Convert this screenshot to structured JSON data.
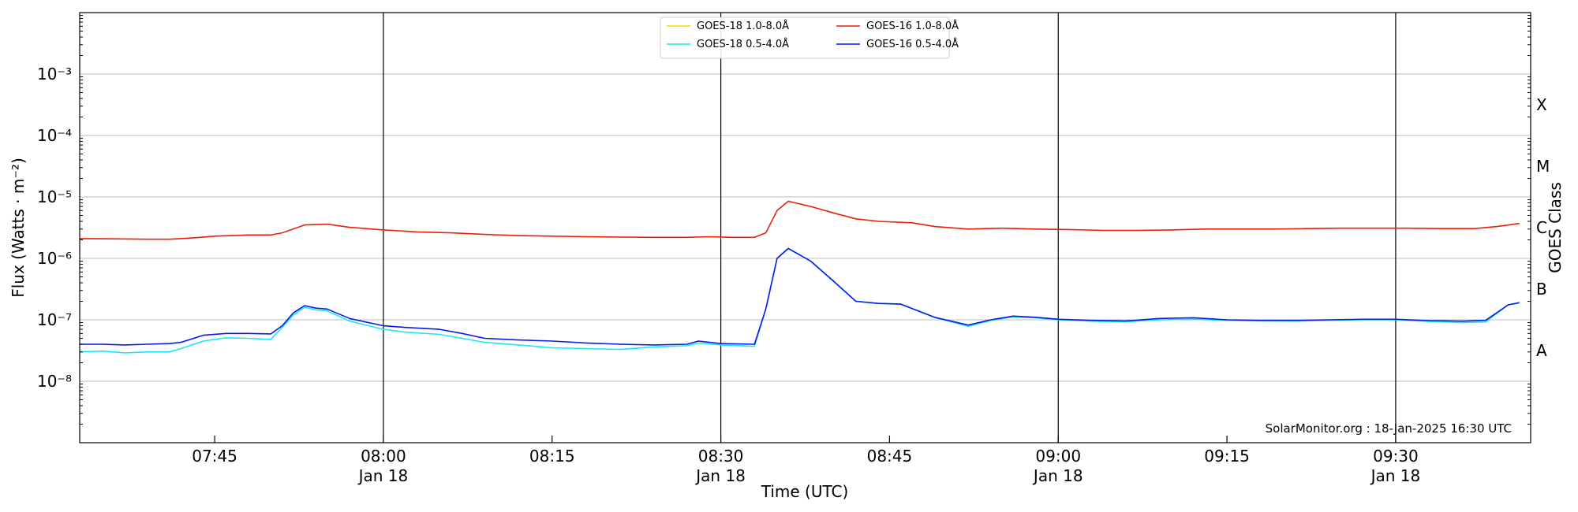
{
  "chart_data": {
    "type": "line",
    "xlabel": "Time (UTC)",
    "ylabel": "Flux (Watts · m⁻²)",
    "y2label": "GOES Class",
    "yscale": "log",
    "ylim": [
      1e-09,
      0.01
    ],
    "xlim": [
      "07:33",
      "09:42"
    ],
    "grid": "horizontal",
    "legend_position": "top-center",
    "annotation": "SolarMonitor.org : 18-Jan-2025 16:30 UTC",
    "x_ticks": [
      {
        "time": "07:45",
        "label": "07:45",
        "date": ""
      },
      {
        "time": "08:00",
        "label": "08:00",
        "date": "Jan 18"
      },
      {
        "time": "08:15",
        "label": "08:15",
        "date": ""
      },
      {
        "time": "08:30",
        "label": "08:30",
        "date": "Jan 18"
      },
      {
        "time": "08:45",
        "label": "08:45",
        "date": ""
      },
      {
        "time": "09:00",
        "label": "09:00",
        "date": "Jan 18"
      },
      {
        "time": "09:15",
        "label": "09:15",
        "date": ""
      },
      {
        "time": "09:30",
        "label": "09:30",
        "date": "Jan 18"
      }
    ],
    "y_ticks": [
      {
        "exp": -3,
        "label": "10⁻³"
      },
      {
        "exp": -4,
        "label": "10⁻⁴"
      },
      {
        "exp": -5,
        "label": "10⁻⁵"
      },
      {
        "exp": -6,
        "label": "10⁻⁶"
      },
      {
        "exp": -7,
        "label": "10⁻⁷"
      },
      {
        "exp": -8,
        "label": "10⁻⁸"
      }
    ],
    "day_lines": [
      "08:00",
      "08:30",
      "09:00",
      "09:30"
    ],
    "classes": [
      {
        "label": "X",
        "flux": 0.000316
      },
      {
        "label": "M",
        "flux": 3.16e-05
      },
      {
        "label": "C",
        "flux": 3.16e-06
      },
      {
        "label": "B",
        "flux": 3.16e-07
      },
      {
        "label": "A",
        "flux": 3.16e-08
      }
    ],
    "legend_entries": [
      {
        "name": "GOES-18 1.0-8.0Å",
        "color": "#ffd500"
      },
      {
        "name": "GOES-18 0.5-4.0Å",
        "color": "#1de8f0"
      },
      {
        "name": "GOES-16 1.0-8.0Å",
        "color": "#e8200a"
      },
      {
        "name": "GOES-16 0.5-4.0Å",
        "color": "#0a1ae8"
      }
    ],
    "series": [
      {
        "name": "GOES-18 0.5-4.0Å",
        "color": "#1de8f0",
        "data": [
          [
            "07:33",
            3e-08
          ],
          [
            "07:35",
            3.1e-08
          ],
          [
            "07:37",
            2.9e-08
          ],
          [
            "07:39",
            3e-08
          ],
          [
            "07:41",
            3e-08
          ],
          [
            "07:42",
            3.4e-08
          ],
          [
            "07:44",
            4.5e-08
          ],
          [
            "07:46",
            5.1e-08
          ],
          [
            "07:48",
            5e-08
          ],
          [
            "07:50",
            4.8e-08
          ],
          [
            "07:51",
            7.5e-08
          ],
          [
            "07:52",
            1.2e-07
          ],
          [
            "07:53",
            1.6e-07
          ],
          [
            "07:54",
            1.45e-07
          ],
          [
            "07:55",
            1.4e-07
          ],
          [
            "07:57",
            9.5e-08
          ],
          [
            "08:00",
            7e-08
          ],
          [
            "08:02",
            6.3e-08
          ],
          [
            "08:05",
            5.8e-08
          ],
          [
            "08:07",
            5e-08
          ],
          [
            "08:09",
            4.3e-08
          ],
          [
            "08:12",
            3.9e-08
          ],
          [
            "08:15",
            3.5e-08
          ],
          [
            "08:18",
            3.4e-08
          ],
          [
            "08:21",
            3.3e-08
          ],
          [
            "08:24",
            3.6e-08
          ],
          [
            "08:27",
            3.8e-08
          ],
          [
            "08:28",
            4.2e-08
          ],
          [
            "08:30",
            3.9e-08
          ],
          [
            "08:33",
            3.7e-08
          ],
          [
            "08:34",
            1.5e-07
          ],
          [
            "08:35",
            1e-06
          ],
          [
            "08:36",
            1.45e-06
          ],
          [
            "08:38",
            9e-07
          ],
          [
            "08:40",
            4.3e-07
          ],
          [
            "08:42",
            2e-07
          ],
          [
            "08:44",
            1.85e-07
          ],
          [
            "08:46",
            1.8e-07
          ],
          [
            "08:49",
            1.1e-07
          ],
          [
            "08:52",
            7.8e-08
          ],
          [
            "08:54",
            9.8e-08
          ],
          [
            "08:56",
            1.12e-07
          ],
          [
            "08:58",
            1.08e-07
          ],
          [
            "09:00",
            1e-07
          ],
          [
            "09:03",
            9.5e-08
          ],
          [
            "09:06",
            9.3e-08
          ],
          [
            "09:09",
            1e-07
          ],
          [
            "09:12",
            1.02e-07
          ],
          [
            "09:15",
            9.8e-08
          ],
          [
            "09:18",
            9.6e-08
          ],
          [
            "09:21",
            9.5e-08
          ],
          [
            "09:24",
            9.8e-08
          ],
          [
            "09:27",
            1e-07
          ],
          [
            "09:30",
            1e-07
          ],
          [
            "09:33",
            9.4e-08
          ],
          [
            "09:36",
            9e-08
          ],
          [
            "09:38",
            9.2e-08
          ],
          [
            "09:40",
            1.75e-07
          ],
          [
            "09:41",
            1.9e-07
          ]
        ]
      },
      {
        "name": "GOES-16 1.0-8.0Å",
        "color": "#e8200a",
        "data": [
          [
            "07:33",
            2.1e-06
          ],
          [
            "07:36",
            2.08e-06
          ],
          [
            "07:39",
            2.05e-06
          ],
          [
            "07:41",
            2.05e-06
          ],
          [
            "07:43",
            2.15e-06
          ],
          [
            "07:45",
            2.3e-06
          ],
          [
            "07:48",
            2.4e-06
          ],
          [
            "07:50",
            2.4e-06
          ],
          [
            "07:51",
            2.6e-06
          ],
          [
            "07:53",
            3.5e-06
          ],
          [
            "07:55",
            3.6e-06
          ],
          [
            "07:57",
            3.2e-06
          ],
          [
            "08:00",
            2.9e-06
          ],
          [
            "08:03",
            2.7e-06
          ],
          [
            "08:06",
            2.6e-06
          ],
          [
            "08:09",
            2.45e-06
          ],
          [
            "08:12",
            2.35e-06
          ],
          [
            "08:15",
            2.3e-06
          ],
          [
            "08:18",
            2.25e-06
          ],
          [
            "08:21",
            2.22e-06
          ],
          [
            "08:24",
            2.2e-06
          ],
          [
            "08:27",
            2.2e-06
          ],
          [
            "08:29",
            2.25e-06
          ],
          [
            "08:31",
            2.2e-06
          ],
          [
            "08:33",
            2.2e-06
          ],
          [
            "08:34",
            2.6e-06
          ],
          [
            "08:35",
            6e-06
          ],
          [
            "08:36",
            8.5e-06
          ],
          [
            "08:38",
            7e-06
          ],
          [
            "08:40",
            5.5e-06
          ],
          [
            "08:42",
            4.4e-06
          ],
          [
            "08:44",
            4e-06
          ],
          [
            "08:47",
            3.8e-06
          ],
          [
            "08:49",
            3.3e-06
          ],
          [
            "08:52",
            3e-06
          ],
          [
            "08:55",
            3.1e-06
          ],
          [
            "08:58",
            3e-06
          ],
          [
            "09:01",
            2.95e-06
          ],
          [
            "09:04",
            2.85e-06
          ],
          [
            "09:07",
            2.85e-06
          ],
          [
            "09:10",
            2.9e-06
          ],
          [
            "09:13",
            3e-06
          ],
          [
            "09:16",
            3e-06
          ],
          [
            "09:19",
            3e-06
          ],
          [
            "09:22",
            3.05e-06
          ],
          [
            "09:25",
            3.1e-06
          ],
          [
            "09:28",
            3.1e-06
          ],
          [
            "09:31",
            3.1e-06
          ],
          [
            "09:34",
            3.05e-06
          ],
          [
            "09:37",
            3.05e-06
          ],
          [
            "09:39",
            3.3e-06
          ],
          [
            "09:41",
            3.7e-06
          ]
        ]
      },
      {
        "name": "GOES-16 0.5-4.0Å",
        "color": "#0a1ae8",
        "data": [
          [
            "07:33",
            4e-08
          ],
          [
            "07:35",
            4e-08
          ],
          [
            "07:37",
            3.9e-08
          ],
          [
            "07:39",
            4e-08
          ],
          [
            "07:41",
            4.1e-08
          ],
          [
            "07:42",
            4.3e-08
          ],
          [
            "07:44",
            5.6e-08
          ],
          [
            "07:46",
            6e-08
          ],
          [
            "07:48",
            6e-08
          ],
          [
            "07:50",
            5.9e-08
          ],
          [
            "07:51",
            8e-08
          ],
          [
            "07:52",
            1.3e-07
          ],
          [
            "07:53",
            1.7e-07
          ],
          [
            "07:54",
            1.55e-07
          ],
          [
            "07:55",
            1.5e-07
          ],
          [
            "07:57",
            1.05e-07
          ],
          [
            "08:00",
            8e-08
          ],
          [
            "08:02",
            7.5e-08
          ],
          [
            "08:05",
            7e-08
          ],
          [
            "08:07",
            6e-08
          ],
          [
            "08:09",
            5e-08
          ],
          [
            "08:12",
            4.7e-08
          ],
          [
            "08:15",
            4.5e-08
          ],
          [
            "08:18",
            4.2e-08
          ],
          [
            "08:21",
            4e-08
          ],
          [
            "08:24",
            3.9e-08
          ],
          [
            "08:27",
            4e-08
          ],
          [
            "08:28",
            4.5e-08
          ],
          [
            "08:30",
            4.1e-08
          ],
          [
            "08:33",
            4e-08
          ],
          [
            "08:34",
            1.5e-07
          ],
          [
            "08:35",
            1e-06
          ],
          [
            "08:36",
            1.45e-06
          ],
          [
            "08:38",
            9e-07
          ],
          [
            "08:40",
            4.3e-07
          ],
          [
            "08:42",
            2e-07
          ],
          [
            "08:44",
            1.85e-07
          ],
          [
            "08:46",
            1.8e-07
          ],
          [
            "08:49",
            1.1e-07
          ],
          [
            "08:52",
            8.2e-08
          ],
          [
            "08:54",
            1e-07
          ],
          [
            "08:56",
            1.15e-07
          ],
          [
            "08:58",
            1.1e-07
          ],
          [
            "09:00",
            1.02e-07
          ],
          [
            "09:03",
            9.8e-08
          ],
          [
            "09:06",
            9.6e-08
          ],
          [
            "09:09",
            1.05e-07
          ],
          [
            "09:12",
            1.08e-07
          ],
          [
            "09:15",
            1e-07
          ],
          [
            "09:18",
            9.8e-08
          ],
          [
            "09:21",
            9.8e-08
          ],
          [
            "09:24",
            1e-07
          ],
          [
            "09:27",
            1.02e-07
          ],
          [
            "09:30",
            1.02e-07
          ],
          [
            "09:33",
            9.7e-08
          ],
          [
            "09:36",
            9.5e-08
          ],
          [
            "09:38",
            9.8e-08
          ],
          [
            "09:40",
            1.75e-07
          ],
          [
            "09:41",
            1.9e-07
          ]
        ]
      }
    ]
  }
}
